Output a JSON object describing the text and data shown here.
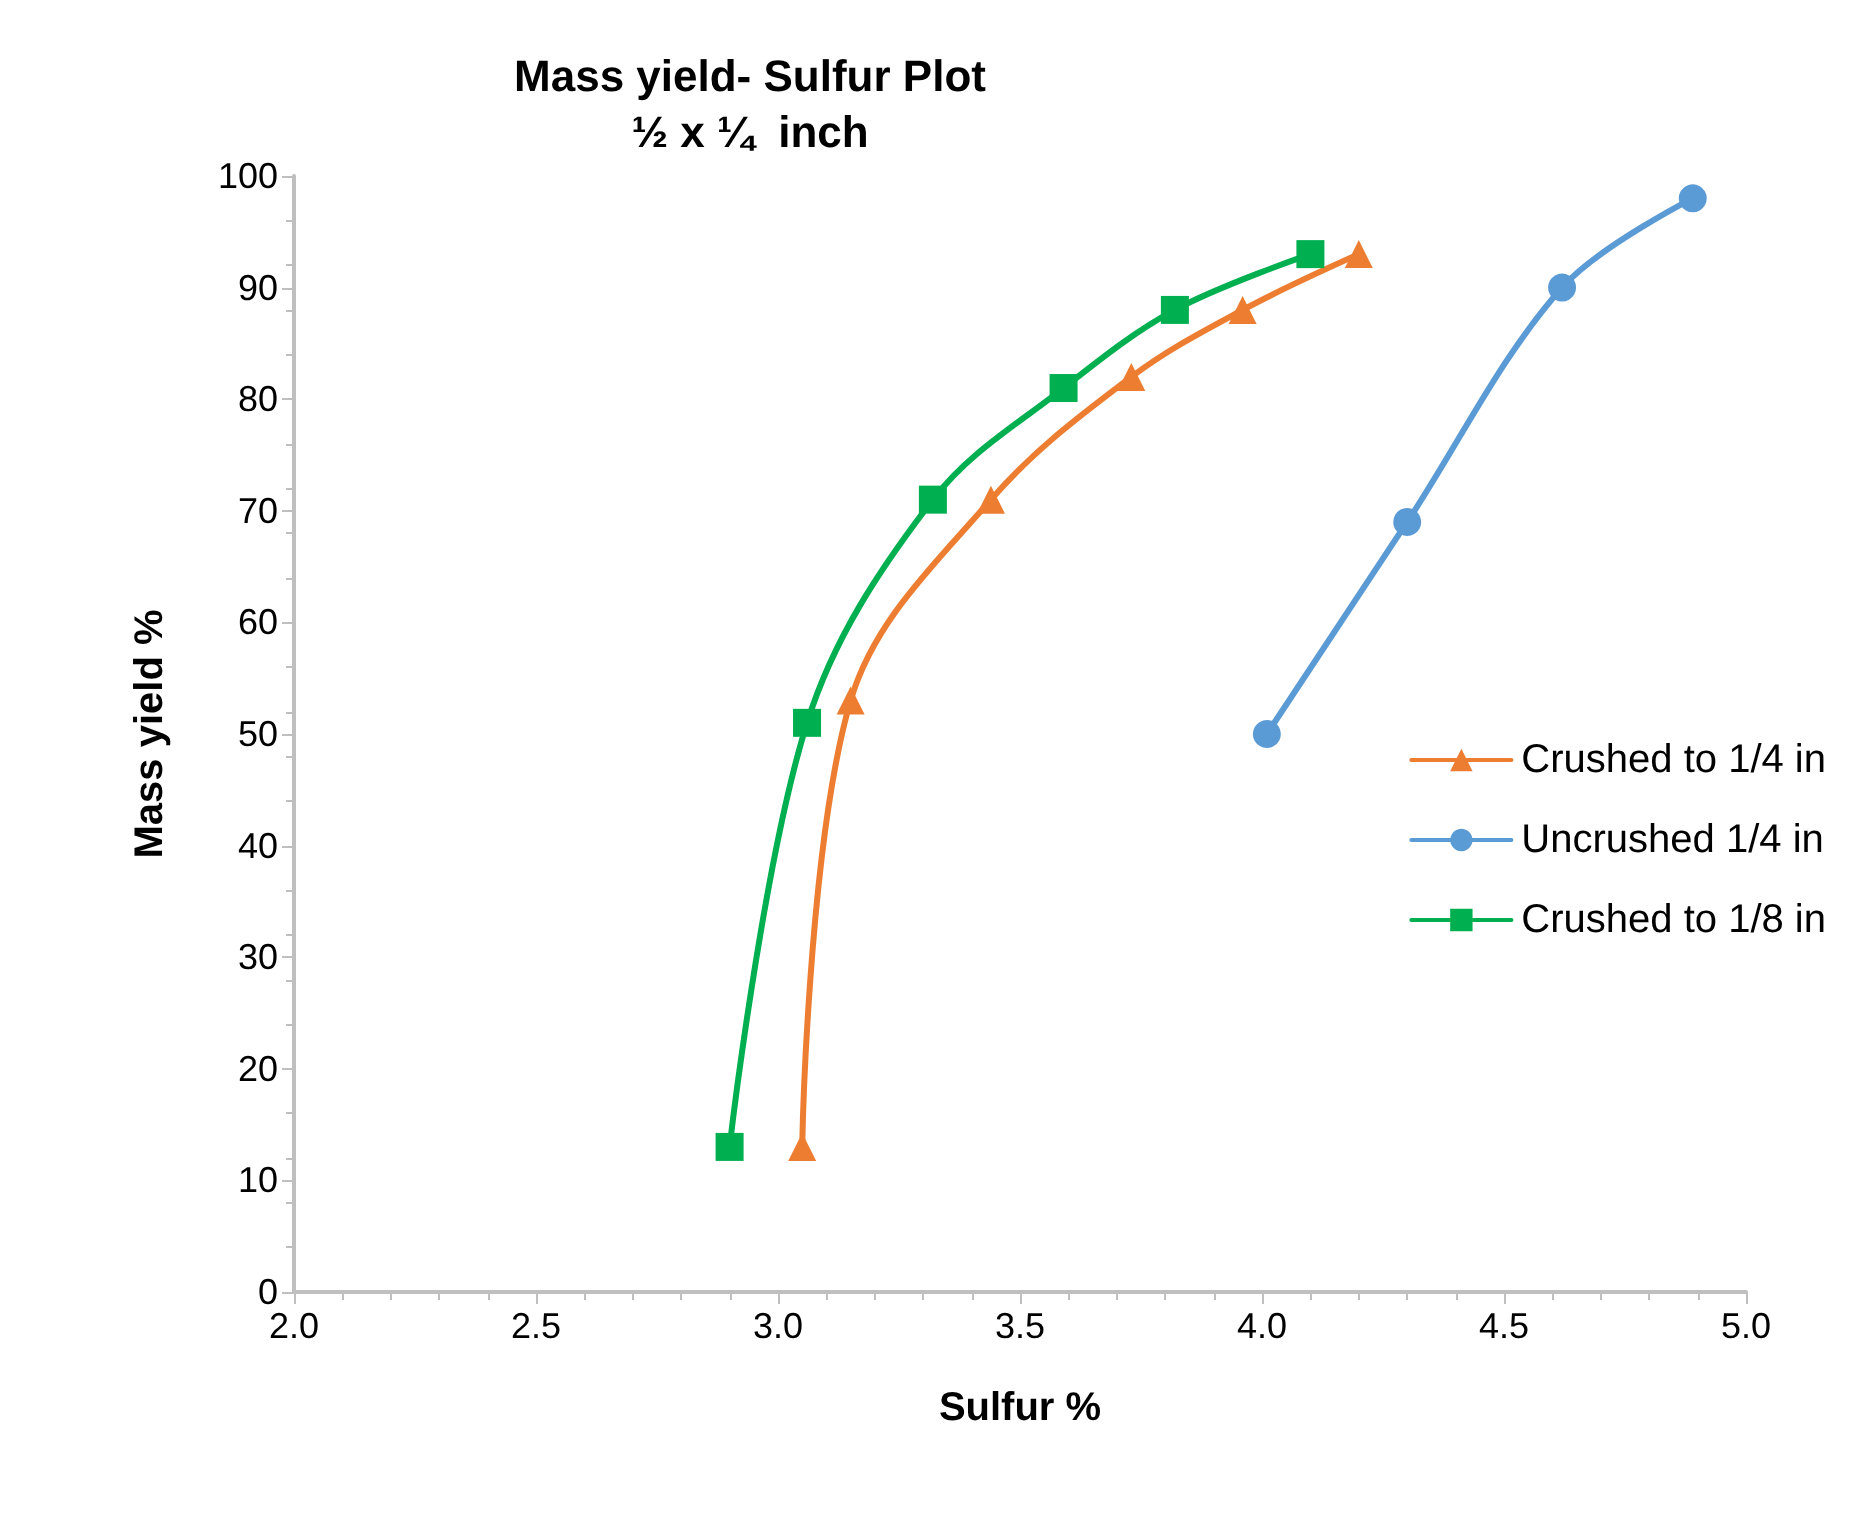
{
  "chart_data": {
    "type": "line",
    "title": "Mass yield- Sulfur Plot",
    "subtitle": "½ x ¼  inch",
    "xlabel": "Sulfur %",
    "ylabel": "Mass yield %",
    "xlim": [
      2.0,
      5.0
    ],
    "xticks": [
      {
        "value": 2,
        "label": "2.0"
      },
      {
        "value": 2.5,
        "label": "2.5"
      },
      {
        "value": 3,
        "label": "3.0"
      },
      {
        "value": 3.5,
        "label": "3.5"
      },
      {
        "value": 4,
        "label": "4.0"
      },
      {
        "value": 4.5,
        "label": "4.5"
      },
      {
        "value": 5,
        "label": "5.0"
      }
    ],
    "ylim": [
      0,
      100
    ],
    "yticks": [
      0,
      10,
      20,
      30,
      40,
      50,
      60,
      70,
      80,
      90,
      100
    ],
    "grid": false,
    "legend": "right",
    "series": [
      {
        "name": "Crushed to 1/4 in",
        "color": "#ed7d31",
        "marker": "triangle",
        "x": [
          3.05,
          3.15,
          3.44,
          3.73,
          3.96,
          4.2
        ],
        "values": [
          13,
          53,
          71,
          82,
          88,
          93
        ]
      },
      {
        "name": "Uncrushed 1/4 in",
        "color": "#5b9bd5",
        "marker": "circle",
        "x": [
          4.01,
          4.3,
          4.62,
          4.89
        ],
        "values": [
          50,
          69,
          90,
          98
        ]
      },
      {
        "name": "Crushed to 1/8 in",
        "color": "#00b050",
        "marker": "square",
        "x": [
          2.9,
          3.06,
          3.32,
          3.59,
          3.82,
          4.1
        ],
        "values": [
          13,
          51,
          71,
          81,
          88,
          93
        ]
      }
    ]
  }
}
